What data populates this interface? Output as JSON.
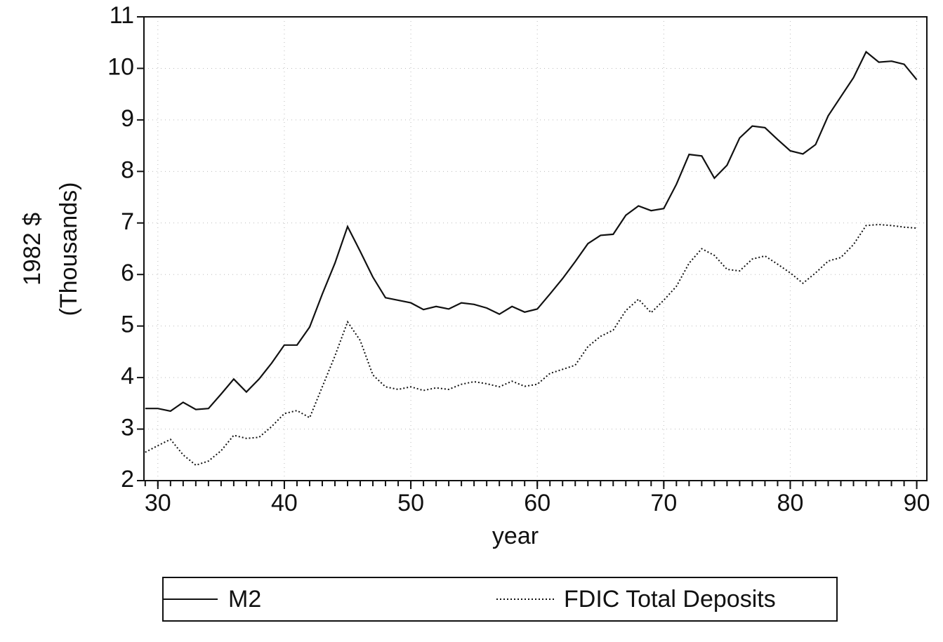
{
  "chart_data": {
    "type": "line",
    "x_label": "year",
    "y_label": [
      "1982 $",
      "(Thousands)"
    ],
    "x": [
      29,
      30,
      31,
      32,
      33,
      34,
      35,
      36,
      37,
      38,
      39,
      40,
      41,
      42,
      43,
      44,
      45,
      46,
      47,
      48,
      49,
      50,
      51,
      52,
      53,
      54,
      55,
      56,
      57,
      58,
      59,
      60,
      61,
      62,
      63,
      64,
      65,
      66,
      67,
      68,
      69,
      70,
      71,
      72,
      73,
      74,
      75,
      76,
      77,
      78,
      79,
      80,
      81,
      82,
      83,
      84,
      85,
      86,
      87,
      88,
      89,
      90
    ],
    "series": [
      {
        "name": "M2",
        "color": "#111111",
        "style": "solid",
        "values": [
          3.4,
          3.4,
          3.35,
          3.52,
          3.38,
          3.4,
          3.68,
          3.97,
          3.72,
          3.97,
          4.28,
          4.63,
          4.63,
          4.98,
          5.62,
          6.22,
          6.93,
          6.45,
          5.95,
          5.55,
          5.5,
          5.45,
          5.32,
          5.38,
          5.33,
          5.45,
          5.42,
          5.35,
          5.23,
          5.38,
          5.27,
          5.33,
          5.62,
          5.92,
          6.25,
          6.6,
          6.76,
          6.78,
          7.15,
          7.33,
          7.24,
          7.28,
          7.75,
          8.33,
          8.3,
          7.87,
          8.12,
          8.65,
          8.88,
          8.85,
          8.62,
          8.4,
          8.34,
          8.52,
          9.08,
          9.45,
          9.82,
          10.32,
          10.12,
          10.14,
          10.08,
          9.78
        ]
      },
      {
        "name": "FDIC Total Deposits",
        "color": "#111111",
        "style": "dotted",
        "values": [
          2.55,
          2.68,
          2.8,
          2.5,
          2.3,
          2.38,
          2.58,
          2.88,
          2.82,
          2.84,
          3.05,
          3.3,
          3.36,
          3.22,
          3.82,
          4.42,
          5.08,
          4.72,
          4.05,
          3.82,
          3.77,
          3.82,
          3.75,
          3.8,
          3.77,
          3.87,
          3.92,
          3.88,
          3.82,
          3.93,
          3.83,
          3.87,
          4.08,
          4.16,
          4.24,
          4.6,
          4.8,
          4.92,
          5.3,
          5.52,
          5.26,
          5.5,
          5.77,
          6.22,
          6.5,
          6.37,
          6.1,
          6.07,
          6.3,
          6.36,
          6.2,
          6.03,
          5.83,
          6.03,
          6.26,
          6.33,
          6.58,
          6.95,
          6.97,
          6.95,
          6.92,
          6.9
        ]
      }
    ],
    "xlim": [
      28.9,
      90.8
    ],
    "xticks": [
      30,
      40,
      50,
      60,
      70,
      80,
      90
    ],
    "ylim": [
      2,
      11
    ],
    "yticks": [
      2,
      3,
      4,
      5,
      6,
      7,
      8,
      9,
      10,
      11
    ],
    "grid": true,
    "legend": "bottom"
  }
}
